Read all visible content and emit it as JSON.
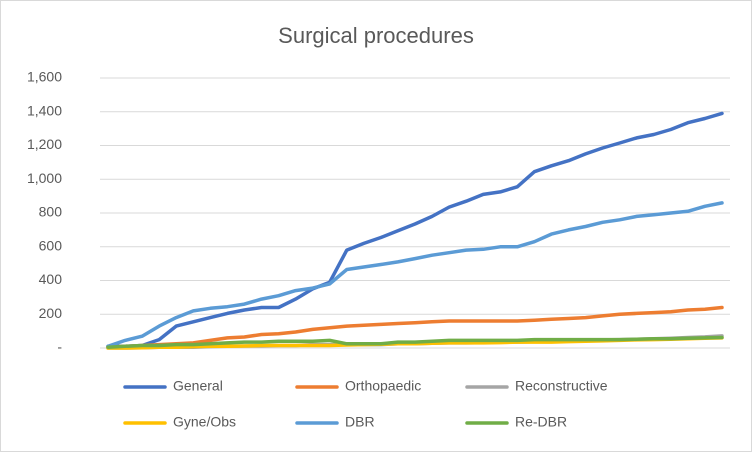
{
  "chart_data": {
    "type": "line",
    "title": "Surgical procedures",
    "categories": [
      null,
      null,
      null,
      null,
      null,
      null,
      null,
      null,
      null,
      null,
      null,
      null,
      null,
      null,
      null,
      null,
      null,
      null,
      null,
      null,
      null,
      null,
      null,
      null,
      null,
      null,
      null,
      null,
      null,
      null,
      null,
      null,
      null,
      null,
      null,
      null,
      null
    ],
    "series": [
      {
        "name": "General",
        "color": "#4472c4",
        "values": [
          10,
          10,
          15,
          50,
          130,
          155,
          180,
          205,
          225,
          240,
          240,
          290,
          350,
          390,
          580,
          620,
          655,
          695,
          735,
          780,
          835,
          870,
          910,
          925,
          955,
          1045,
          1080,
          1110,
          1150,
          1185,
          1215,
          1245,
          1265,
          1295,
          1335,
          1360,
          1390
        ]
      },
      {
        "name": "Orthopaedic",
        "color": "#ed7d31",
        "values": [
          5,
          10,
          15,
          20,
          25,
          30,
          45,
          60,
          65,
          80,
          85,
          95,
          110,
          120,
          130,
          135,
          140,
          145,
          150,
          155,
          160,
          160,
          160,
          160,
          160,
          165,
          170,
          175,
          180,
          190,
          200,
          205,
          210,
          215,
          225,
          230,
          240
        ]
      },
      {
        "name": "Reconstructive",
        "color": "#a5a5a5",
        "values": [
          0,
          0,
          2,
          5,
          5,
          5,
          8,
          10,
          12,
          12,
          15,
          15,
          20,
          20,
          20,
          20,
          20,
          25,
          25,
          28,
          30,
          30,
          32,
          35,
          35,
          38,
          40,
          42,
          45,
          48,
          50,
          52,
          55,
          58,
          62,
          66,
          72
        ]
      },
      {
        "name": "Gyne/Obs",
        "color": "#ffc000",
        "values": [
          0,
          0,
          2,
          5,
          5,
          8,
          10,
          10,
          12,
          15,
          15,
          15,
          15,
          15,
          18,
          20,
          22,
          25,
          25,
          28,
          30,
          30,
          30,
          32,
          35,
          35,
          35,
          38,
          40,
          42,
          45,
          48,
          50,
          52,
          55,
          58,
          60
        ]
      },
      {
        "name": "DBR",
        "color": "#5b9bd5",
        "values": [
          10,
          45,
          70,
          130,
          180,
          220,
          235,
          245,
          260,
          290,
          310,
          340,
          355,
          380,
          465,
          480,
          495,
          510,
          530,
          550,
          565,
          580,
          585,
          600,
          600,
          630,
          675,
          700,
          720,
          745,
          760,
          780,
          790,
          800,
          810,
          840,
          860
        ]
      },
      {
        "name": "Re-DBR",
        "color": "#70ad47",
        "values": [
          5,
          10,
          15,
          15,
          20,
          20,
          25,
          30,
          35,
          35,
          40,
          40,
          40,
          45,
          25,
          25,
          25,
          35,
          35,
          40,
          45,
          45,
          45,
          45,
          45,
          50,
          50,
          50,
          50,
          50,
          50,
          52,
          55,
          55,
          58,
          60,
          62
        ]
      }
    ],
    "ylim": [
      0,
      1600
    ],
    "yticks": [
      {
        "value": 0,
        "label": "-"
      },
      200,
      400,
      600,
      800,
      {
        "value": 1000,
        "label": "1,000"
      },
      {
        "value": 1200,
        "label": "1,200"
      },
      {
        "value": 1400,
        "label": "1,400"
      },
      {
        "value": 1600,
        "label": "1,600"
      }
    ],
    "grid": true,
    "legend": "bottom"
  }
}
